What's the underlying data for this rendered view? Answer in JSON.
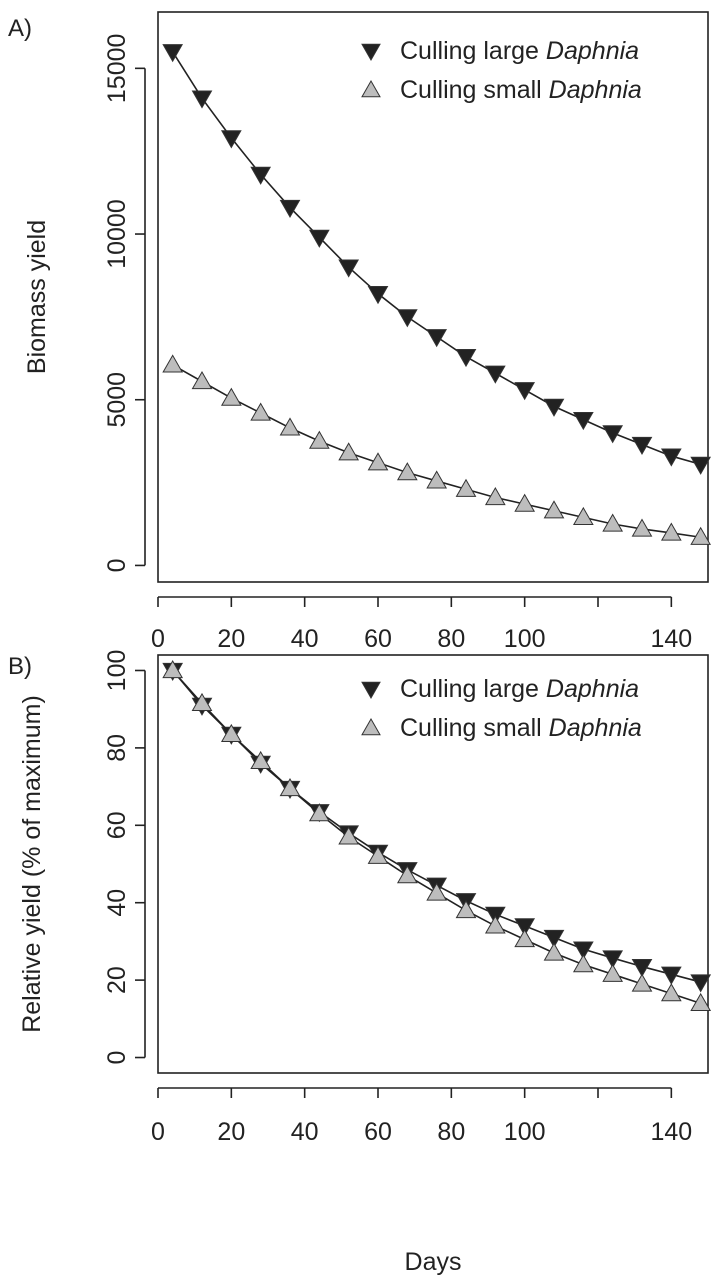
{
  "colors": {
    "large_marker": "#222222",
    "small_marker": "#bdbdbd",
    "marker_outline": "#333333"
  },
  "common_xlabel": "Days",
  "chart_data": [
    {
      "panel_label": "A)",
      "type": "line",
      "title": "",
      "xlabel": "",
      "ylabel": "Biomass yield",
      "xlim": [
        0,
        150
      ],
      "ylim": [
        -500,
        16700
      ],
      "xticks": [
        0,
        20,
        40,
        60,
        80,
        100,
        120,
        140
      ],
      "xtick_labels": [
        "0",
        "20",
        "40",
        "60",
        "80",
        "100",
        "",
        "140"
      ],
      "yticks": [
        0,
        5000,
        10000,
        15000
      ],
      "ytick_labels": [
        "0",
        "5000",
        "10000",
        "15000"
      ],
      "legend_position": "top-right",
      "x": [
        4,
        12,
        20,
        28,
        36,
        44,
        52,
        60,
        68,
        76,
        84,
        92,
        100,
        108,
        116,
        124,
        132,
        140,
        148
      ],
      "series": [
        {
          "name": "Culling large Daphnia",
          "legend_prefix": "Culling large ",
          "legend_italic": "Daphnia",
          "marker": "down-triangle",
          "values": [
            15500,
            14100,
            12900,
            11800,
            10800,
            9900,
            9000,
            8200,
            7500,
            6900,
            6300,
            5800,
            5300,
            4800,
            4400,
            4000,
            3650,
            3300,
            3050
          ]
        },
        {
          "name": "Culling small Daphnia",
          "legend_prefix": "Culling small ",
          "legend_italic": "Daphnia",
          "marker": "up-triangle",
          "values": [
            6050,
            5550,
            5050,
            4600,
            4150,
            3750,
            3400,
            3100,
            2800,
            2550,
            2300,
            2050,
            1850,
            1650,
            1450,
            1250,
            1100,
            980,
            850
          ]
        }
      ]
    },
    {
      "panel_label": "B)",
      "type": "line",
      "title": "",
      "xlabel": "Days",
      "ylabel": "Relative yield (% of maximum)",
      "xlim": [
        0,
        150
      ],
      "ylim": [
        -4,
        104
      ],
      "xticks": [
        0,
        20,
        40,
        60,
        80,
        100,
        120,
        140
      ],
      "xtick_labels": [
        "0",
        "20",
        "40",
        "60",
        "80",
        "100",
        "",
        "140"
      ],
      "yticks": [
        0,
        20,
        40,
        60,
        80,
        100
      ],
      "ytick_labels": [
        "0",
        "20",
        "40",
        "60",
        "80",
        "100"
      ],
      "legend_position": "top-right",
      "x": [
        4,
        12,
        20,
        28,
        36,
        44,
        52,
        60,
        68,
        76,
        84,
        92,
        100,
        108,
        116,
        124,
        132,
        140,
        148
      ],
      "series": [
        {
          "name": "Culling large Daphnia",
          "legend_prefix": "Culling large ",
          "legend_italic": "Daphnia",
          "marker": "down-triangle",
          "values": [
            100,
            91,
            83.5,
            76,
            69.5,
            63.5,
            58,
            53,
            48.5,
            44.5,
            40.5,
            37,
            34,
            31,
            28,
            25.7,
            23.5,
            21.5,
            19.5
          ]
        },
        {
          "name": "Culling small Daphnia",
          "legend_prefix": "Culling small ",
          "legend_italic": "Daphnia",
          "marker": "up-triangle",
          "values": [
            100,
            91.5,
            83.5,
            76.5,
            69.5,
            63,
            57,
            52,
            47,
            42.5,
            38,
            34,
            30.5,
            27,
            24,
            21.5,
            19,
            16.5,
            14
          ]
        }
      ]
    }
  ]
}
